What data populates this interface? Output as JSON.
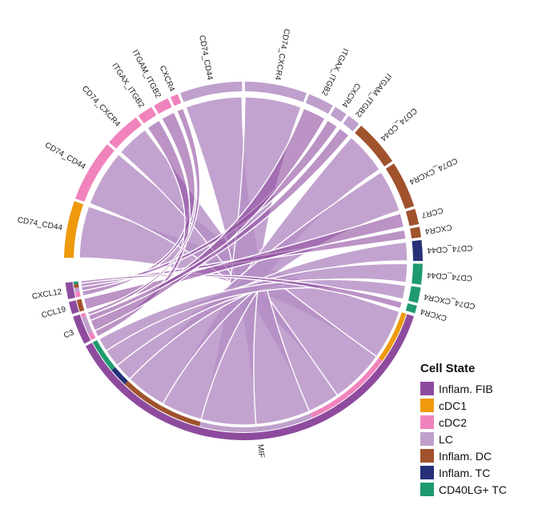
{
  "chart_data": {
    "type": "chord",
    "title": "",
    "legend_title": "Cell State",
    "legend_position": "bottom-right",
    "groups": [
      {
        "name": "Inflam. FIB",
        "color": "#8E4B9E"
      },
      {
        "name": "cDC1",
        "color": "#EE9A0C"
      },
      {
        "name": "cDC2",
        "color": "#F183BC"
      },
      {
        "name": "LC",
        "color": "#BFA0CC"
      },
      {
        "name": "Inflam. DC",
        "color": "#A0522D"
      },
      {
        "name": "Inflam. TC",
        "color": "#253078"
      },
      {
        "name": "CD40LG+ TC",
        "color": "#1E9A6E"
      }
    ],
    "senders": [
      {
        "ligand": "CXCL12",
        "group": "Inflam. FIB",
        "value": 4
      },
      {
        "ligand": "CCL19",
        "group": "Inflam. FIB",
        "value": 3
      },
      {
        "ligand": "C3",
        "group": "Inflam. FIB",
        "value": 7
      },
      {
        "ligand": "MIF",
        "group": "Inflam. FIB",
        "value": 100
      }
    ],
    "receivers": [
      {
        "receptor": "CD74_CD44",
        "group": "cDC1",
        "value": 11
      },
      {
        "receptor": "CD74_CD44",
        "group": "cDC2",
        "value": 12
      },
      {
        "receptor": "CD74_CXCR4",
        "group": "cDC2",
        "value": 7
      },
      {
        "receptor": "ITGAX_ITGB2",
        "group": "cDC2",
        "value": 3
      },
      {
        "receptor": "ITGAM_ITGB2",
        "group": "cDC2",
        "value": 3
      },
      {
        "receptor": "CXCR4",
        "group": "cDC2",
        "value": 1.5
      },
      {
        "receptor": "CD74_CD44",
        "group": "LC",
        "value": 12
      },
      {
        "receptor": "CD74_CXCR4",
        "group": "LC",
        "value": 12
      },
      {
        "receptor": "ITGAX_ITGB2",
        "group": "LC",
        "value": 5
      },
      {
        "receptor": "CXCR4",
        "group": "LC",
        "value": 2.5
      },
      {
        "receptor": "ITGAM_ITGB2",
        "group": "LC",
        "value": 2.5
      },
      {
        "receptor": "CD74_CD44",
        "group": "Inflam. DC",
        "value": 9
      },
      {
        "receptor": "CD74_CXCR4",
        "group": "Inflam. DC",
        "value": 9
      },
      {
        "receptor": "CCR7",
        "group": "Inflam. DC",
        "value": 3
      },
      {
        "receptor": "CXCR4",
        "group": "Inflam. DC",
        "value": 2
      },
      {
        "receptor": "CD74_CD44",
        "group": "Inflam. TC",
        "value": 4
      },
      {
        "receptor": "CD74_CD44",
        "group": "CD40LG+ TC",
        "value": 4
      },
      {
        "receptor": "CD74_CXCR4",
        "group": "CD40LG+ TC",
        "value": 3
      },
      {
        "receptor": "CXCR4",
        "group": "CD40LG+ TC",
        "value": 1.5
      }
    ],
    "links": [
      {
        "from": "MIF",
        "to": 0
      },
      {
        "from": "MIF",
        "to": 1
      },
      {
        "from": "MIF",
        "to": 2
      },
      {
        "from": "MIF",
        "to": 6
      },
      {
        "from": "MIF",
        "to": 7
      },
      {
        "from": "MIF",
        "to": 11
      },
      {
        "from": "MIF",
        "to": 12
      },
      {
        "from": "MIF",
        "to": 15
      },
      {
        "from": "MIF",
        "to": 16
      },
      {
        "from": "MIF",
        "to": 17
      },
      {
        "from": "CXCL12",
        "to": 4
      },
      {
        "from": "CXCL12",
        "to": 9
      },
      {
        "from": "CXCL12",
        "to": 14
      },
      {
        "from": "CXCL12",
        "to": 18
      },
      {
        "from": "CCL19",
        "to": 13
      },
      {
        "from": "C3",
        "to": 3
      },
      {
        "from": "C3",
        "to": 8
      },
      {
        "from": "C3",
        "to": 10
      },
      {
        "from": "C3",
        "to": 5
      }
    ]
  }
}
